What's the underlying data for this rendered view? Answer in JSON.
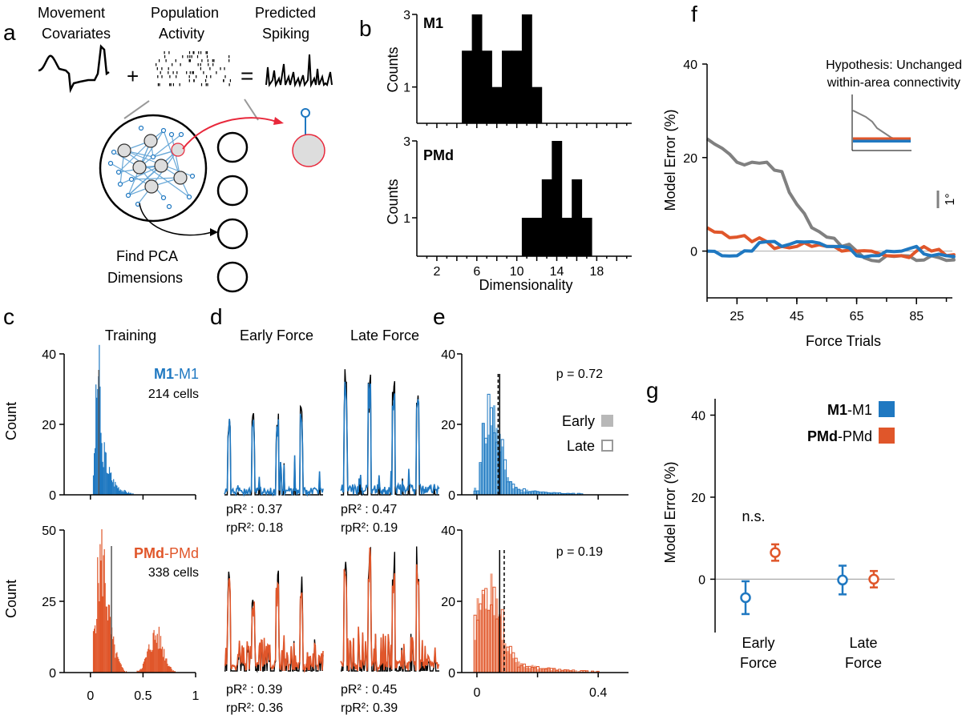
{
  "colors": {
    "m1": "#1f78c1",
    "pmd": "#e0562a",
    "gray": "#808080",
    "black": "#000000",
    "red": "#e8283b",
    "lightblue": "#7ab4de",
    "lightorange": "#f1a286"
  },
  "panels": {
    "a": "a",
    "b": "b",
    "c": "c",
    "d": "d",
    "e": "e",
    "f": "f",
    "g": "g"
  },
  "a": {
    "covariates": [
      "Movement",
      "Covariates"
    ],
    "activity": [
      "Population",
      "Activity"
    ],
    "spiking": [
      "Predicted",
      "Spiking"
    ],
    "plus": "+",
    "equals": "=",
    "pca": [
      "Find PCA",
      "Dimensions"
    ]
  },
  "b": {
    "ylabel": "Counts",
    "xlabel": "Dimensionality",
    "m1_label": "M1",
    "pmd_label": "PMd"
  },
  "c": {
    "title": "Training",
    "ylabel": "Count",
    "m1_label_bold": "M1",
    "m1_label_rest": "-M1",
    "m1_cells": "214 cells",
    "pmd_label_bold": "PMd",
    "pmd_label_rest": "-PMd",
    "pmd_cells": "338 cells"
  },
  "d": {
    "early": "Early Force",
    "late": "Late Force",
    "top_early_pr2": "pR² : 0.37",
    "top_early_rpr2": "rpR²: 0.18",
    "top_late_pr2": "pR² : 0.47",
    "top_late_rpr2": "rpR²: 0.19",
    "bot_early_pr2": "pR² : 0.39",
    "bot_early_rpr2": "rpR²: 0.36",
    "bot_late_pr2": "pR² : 0.45",
    "bot_late_rpr2": "rpR²: 0.39"
  },
  "e": {
    "p_top": "p = 0.72",
    "p_bot": "p = 0.19",
    "early": "Early",
    "late": "Late"
  },
  "f": {
    "ylabel": "Model Error (%)",
    "xlabel": "Force Trials",
    "hyp1": "Hypothesis: Unchanged",
    "hyp2": "within-area connectivity",
    "scale": "1°"
  },
  "g": {
    "ylabel": "Model Error (%)",
    "ns": "n.s.",
    "leg_m1_bold": "M1",
    "leg_m1_rest": "-M1",
    "leg_pmd_bold": "PMd",
    "leg_pmd_rest": "-PMd",
    "cat1": [
      "Early",
      "Force"
    ],
    "cat2": [
      "Late",
      "Force"
    ]
  },
  "chart_data": [
    {
      "panel": "b-M1",
      "type": "bar",
      "xlabel": "Dimensionality",
      "ylabel": "Counts",
      "yticks": [
        1,
        3
      ],
      "ylim": [
        0,
        3
      ],
      "x": [
        5,
        6,
        7,
        8,
        9,
        10,
        11,
        12
      ],
      "values": [
        2,
        3,
        2,
        1,
        2,
        2,
        3,
        1
      ]
    },
    {
      "panel": "b-PMd",
      "type": "bar",
      "xlabel": "Dimensionality",
      "ylabel": "Counts",
      "xticks": [
        2,
        6,
        10,
        14,
        18
      ],
      "yticks": [
        1,
        3
      ],
      "ylim": [
        0,
        3
      ],
      "x": [
        11,
        12,
        13,
        14,
        15,
        16,
        17
      ],
      "values": [
        1,
        1,
        2,
        3,
        1,
        2,
        1
      ]
    },
    {
      "panel": "c-M1",
      "type": "bar",
      "title": "Training",
      "ylabel": "Count",
      "yticks": [
        0,
        20,
        40
      ],
      "ylim": [
        0,
        40
      ],
      "xlim": [
        -0.25,
        1
      ],
      "median": 0.08,
      "series": [
        {
          "name": "M1-M1",
          "note": "214 cells"
        }
      ]
    },
    {
      "panel": "c-PMd",
      "type": "bar",
      "ylabel": "Count",
      "yticks": [
        0,
        25,
        50
      ],
      "ylim": [
        0,
        50
      ],
      "xticks": [
        0,
        0.5,
        1
      ],
      "xlim": [
        -0.25,
        1
      ],
      "median": 0.2,
      "series": [
        {
          "name": "PMd-PMd",
          "note": "338 cells"
        }
      ]
    },
    {
      "panel": "e-top",
      "type": "bar",
      "yticks": [
        0,
        20,
        40
      ],
      "ylim": [
        0,
        40
      ],
      "xlim": [
        -0.05,
        0.5
      ],
      "annotation": "p = 0.72",
      "series": [
        {
          "name": "Early",
          "median": 0.075
        },
        {
          "name": "Late",
          "median": 0.07
        }
      ]
    },
    {
      "panel": "e-bot",
      "type": "bar",
      "yticks": [
        0,
        20,
        40
      ],
      "ylim": [
        0,
        40
      ],
      "xticks": [
        0,
        0.4
      ],
      "xlim": [
        -0.05,
        0.5
      ],
      "annotation": "p = 0.19",
      "series": [
        {
          "name": "Early",
          "median": 0.075
        },
        {
          "name": "Late",
          "median": 0.09
        }
      ]
    },
    {
      "panel": "f",
      "type": "line",
      "xlabel": "Force Trials",
      "ylabel": "Model Error (%)",
      "xticks": [
        25,
        45,
        65,
        85
      ],
      "yticks": [
        0,
        20,
        40
      ],
      "xlim": [
        15,
        97
      ],
      "ylim": [
        -10,
        40
      ],
      "x": [
        15,
        20,
        25,
        30,
        35,
        40,
        45,
        50,
        55,
        60,
        65,
        70,
        75,
        80,
        85,
        90,
        95,
        97
      ],
      "series": [
        {
          "name": "gray",
          "values": [
            24,
            22,
            19,
            19,
            19,
            17,
            10,
            5,
            3,
            1,
            0,
            -2,
            -1,
            -1,
            -2,
            -1,
            -2,
            -1
          ]
        },
        {
          "name": "M1-M1",
          "values": [
            0,
            -1,
            -1,
            0,
            2,
            1,
            2,
            2,
            1,
            1,
            -1,
            -1,
            0,
            0,
            1,
            -1,
            -1,
            -1
          ]
        },
        {
          "name": "PMd-PMd",
          "values": [
            5,
            4,
            3,
            2,
            2,
            1,
            1,
            1,
            1,
            0,
            0,
            0,
            -1,
            -1,
            0,
            0,
            -1,
            -1
          ]
        }
      ]
    },
    {
      "panel": "g",
      "type": "scatter",
      "ylabel": "Model Error (%)",
      "categories": [
        "Early Force",
        "Late Force"
      ],
      "yticks": [
        0,
        20,
        40
      ],
      "ylim": [
        -13,
        44
      ],
      "annotation": "n.s.",
      "series": [
        {
          "name": "M1-M1",
          "values": [
            -4.5,
            -0.2
          ],
          "err": [
            4,
            3.5
          ]
        },
        {
          "name": "PMd-PMd",
          "values": [
            6.5,
            0
          ],
          "err": [
            2,
            2
          ]
        }
      ]
    }
  ]
}
